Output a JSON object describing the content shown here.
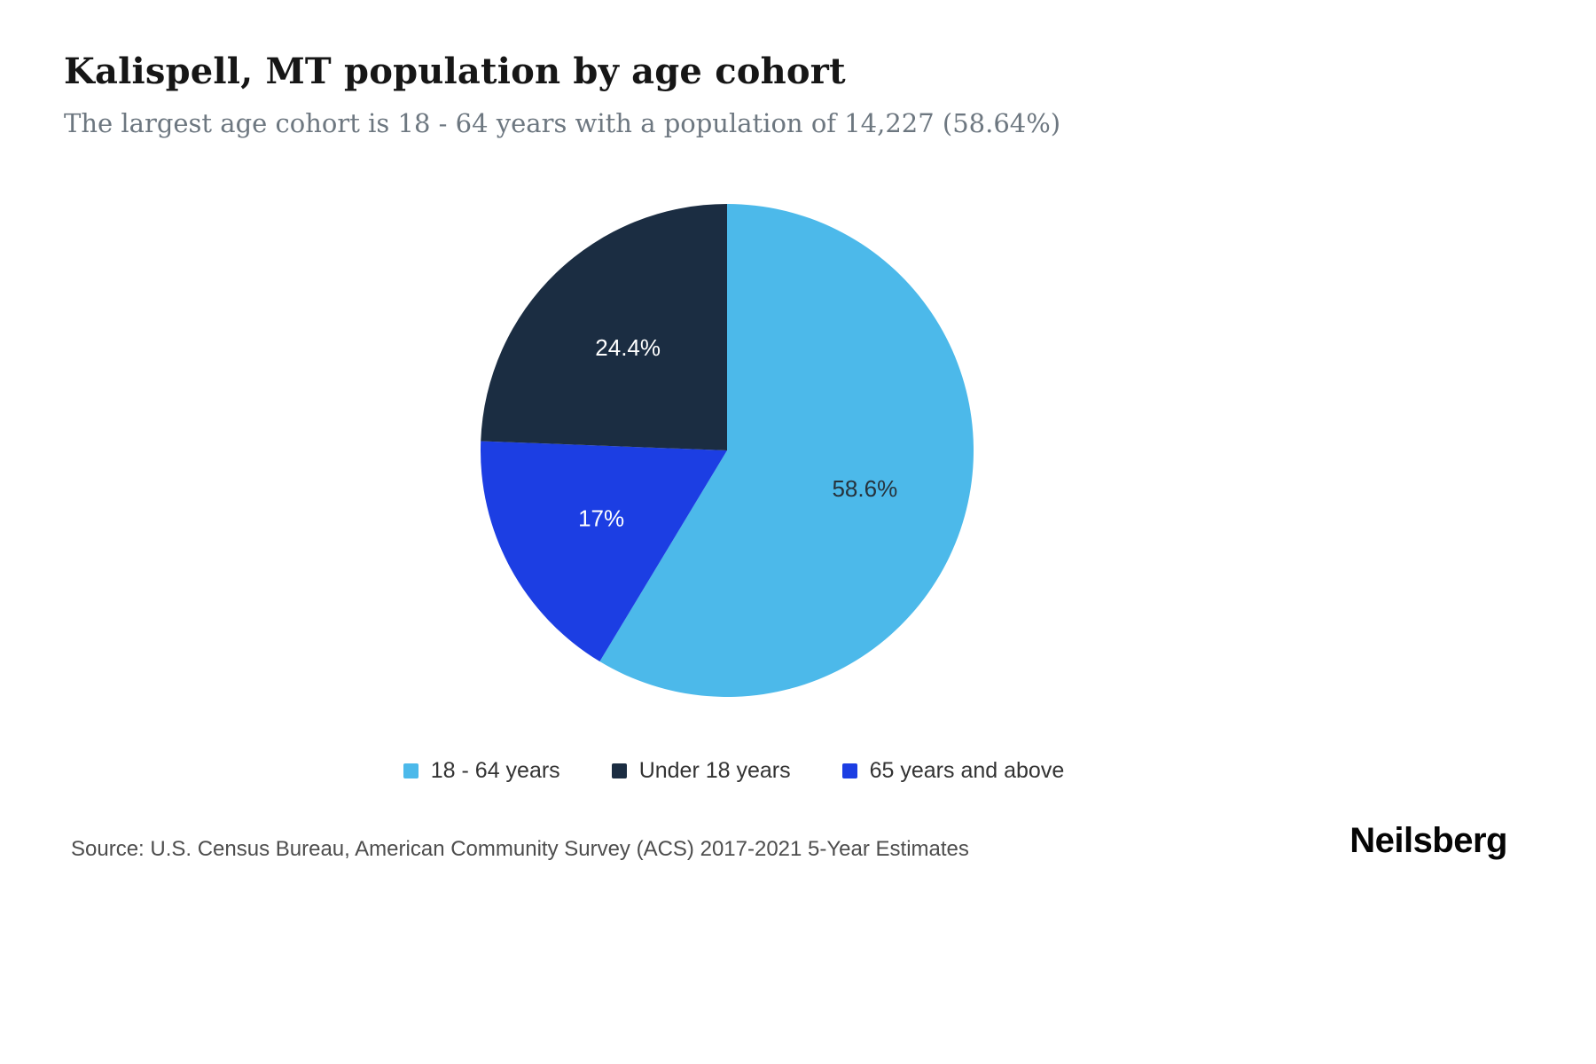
{
  "header": {
    "title": "Kalispell, MT population by age cohort",
    "subtitle": "The largest age cohort is 18 - 64 years with a population of 14,227 (58.64%)"
  },
  "chart_data": {
    "type": "pie",
    "title": "Kalispell, MT population by age cohort",
    "slices": [
      {
        "label": "18 - 64 years",
        "value": 58.64,
        "display_pct": "58.6%",
        "color": "#4CB9EA",
        "label_color": "#26323c"
      },
      {
        "label": "Under 18 years",
        "value": 24.4,
        "display_pct": "24.4%",
        "color": "#1B2D42",
        "label_color": "#ffffff"
      },
      {
        "label": "65 years and above",
        "value": 16.96,
        "display_pct": "17%",
        "color": "#1C3EE3",
        "label_color": "#ffffff"
      }
    ],
    "draw_order": [
      0,
      2,
      1
    ],
    "start_angle_deg": 0,
    "legend_position": "bottom",
    "largest_cohort": {
      "label": "18 - 64 years",
      "population": "14,227",
      "pct": "58.64%"
    }
  },
  "footer": {
    "source": "Source: U.S. Census Bureau, American Community Survey (ACS) 2017-2021 5-Year Estimates",
    "logo": "Neilsberg"
  }
}
